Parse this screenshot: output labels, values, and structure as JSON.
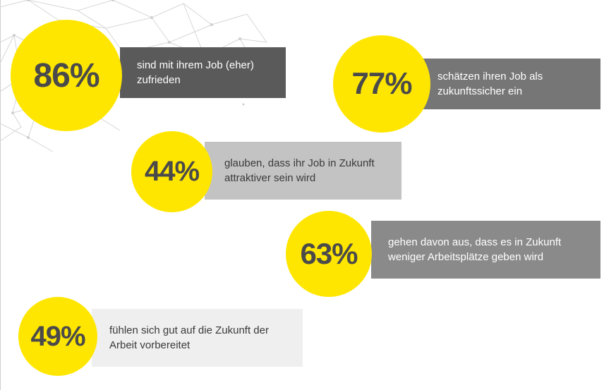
{
  "colors": {
    "accent_yellow": "#ffe600",
    "percent_text": "#4a4a4a",
    "network_lines": "#d6d6d6"
  },
  "decoration": {
    "network_icon": "network-lines-graphic"
  },
  "stats": [
    {
      "value": "86%",
      "text": "sind mit ihrem Job (eher) zufrieden",
      "bar_color": "#5a5a5a",
      "text_color": "#ffffff"
    },
    {
      "value": "77%",
      "text": "schätzen ihren Job als zukunftssicher ein",
      "bar_color": "#767676",
      "text_color": "#ffffff"
    },
    {
      "value": "44%",
      "text": "glauben, dass ihr Job in Zukunft attraktiver sein wird",
      "bar_color": "#c3c3c3",
      "text_color": "#3a3a3a"
    },
    {
      "value": "63%",
      "text": "gehen davon aus, dass es in Zukunft weniger Arbeitsplätze geben wird",
      "bar_color": "#8a8a8a",
      "text_color": "#ffffff"
    },
    {
      "value": "49%",
      "text": "fühlen sich gut auf die Zukunft der Arbeit vorbereitet",
      "bar_color": "#efefef",
      "text_color": "#3a3a3a"
    }
  ]
}
